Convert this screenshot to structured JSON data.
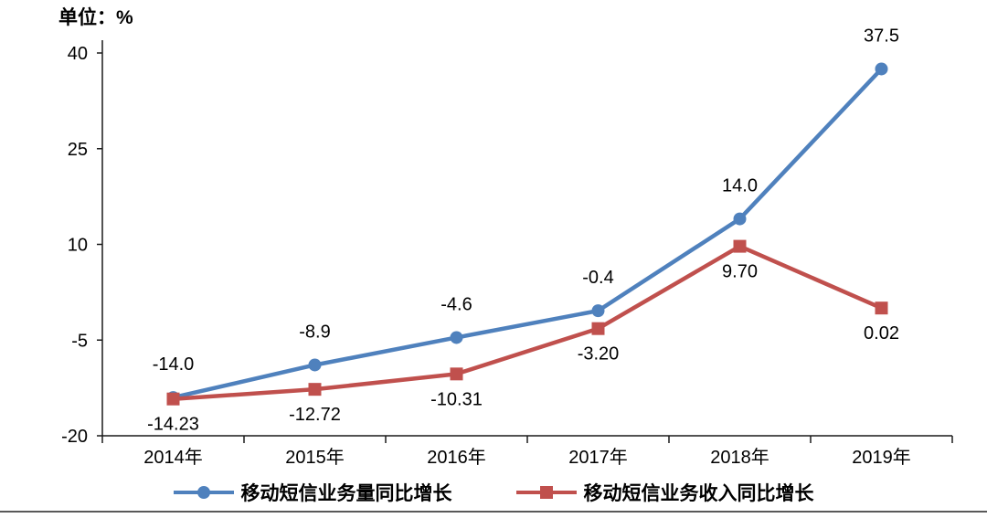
{
  "unit_label": "单位：%",
  "chart_data": {
    "type": "line",
    "title": "",
    "unit": "单位：%",
    "categories": [
      "2014年",
      "2015年",
      "2016年",
      "2017年",
      "2018年",
      "2019年"
    ],
    "series": [
      {
        "name": "移动短信业务量同比增长",
        "values": [
          -14.0,
          -8.9,
          -4.6,
          -0.4,
          14.0,
          37.5
        ],
        "labels": [
          "-14.0",
          "-8.9",
          "-4.6",
          "-0.4",
          "14.0",
          "37.5"
        ],
        "color": "#4f81bd",
        "marker": "circle",
        "label_position": "above"
      },
      {
        "name": "移动短信业务收入同比增长",
        "values": [
          -14.23,
          -12.72,
          -10.31,
          -3.2,
          9.7,
          0.02
        ],
        "labels": [
          "-14.23",
          "-12.72",
          "-10.31",
          "-3.20",
          "9.70",
          "0.02"
        ],
        "color": "#c0504d",
        "marker": "square",
        "label_position": "below"
      }
    ],
    "yticks": [
      -20,
      -5,
      10,
      25,
      40
    ],
    "ylim": [
      -20,
      40
    ],
    "grid": false,
    "legend_position": "bottom",
    "axis_color": "#1a1a1a"
  }
}
